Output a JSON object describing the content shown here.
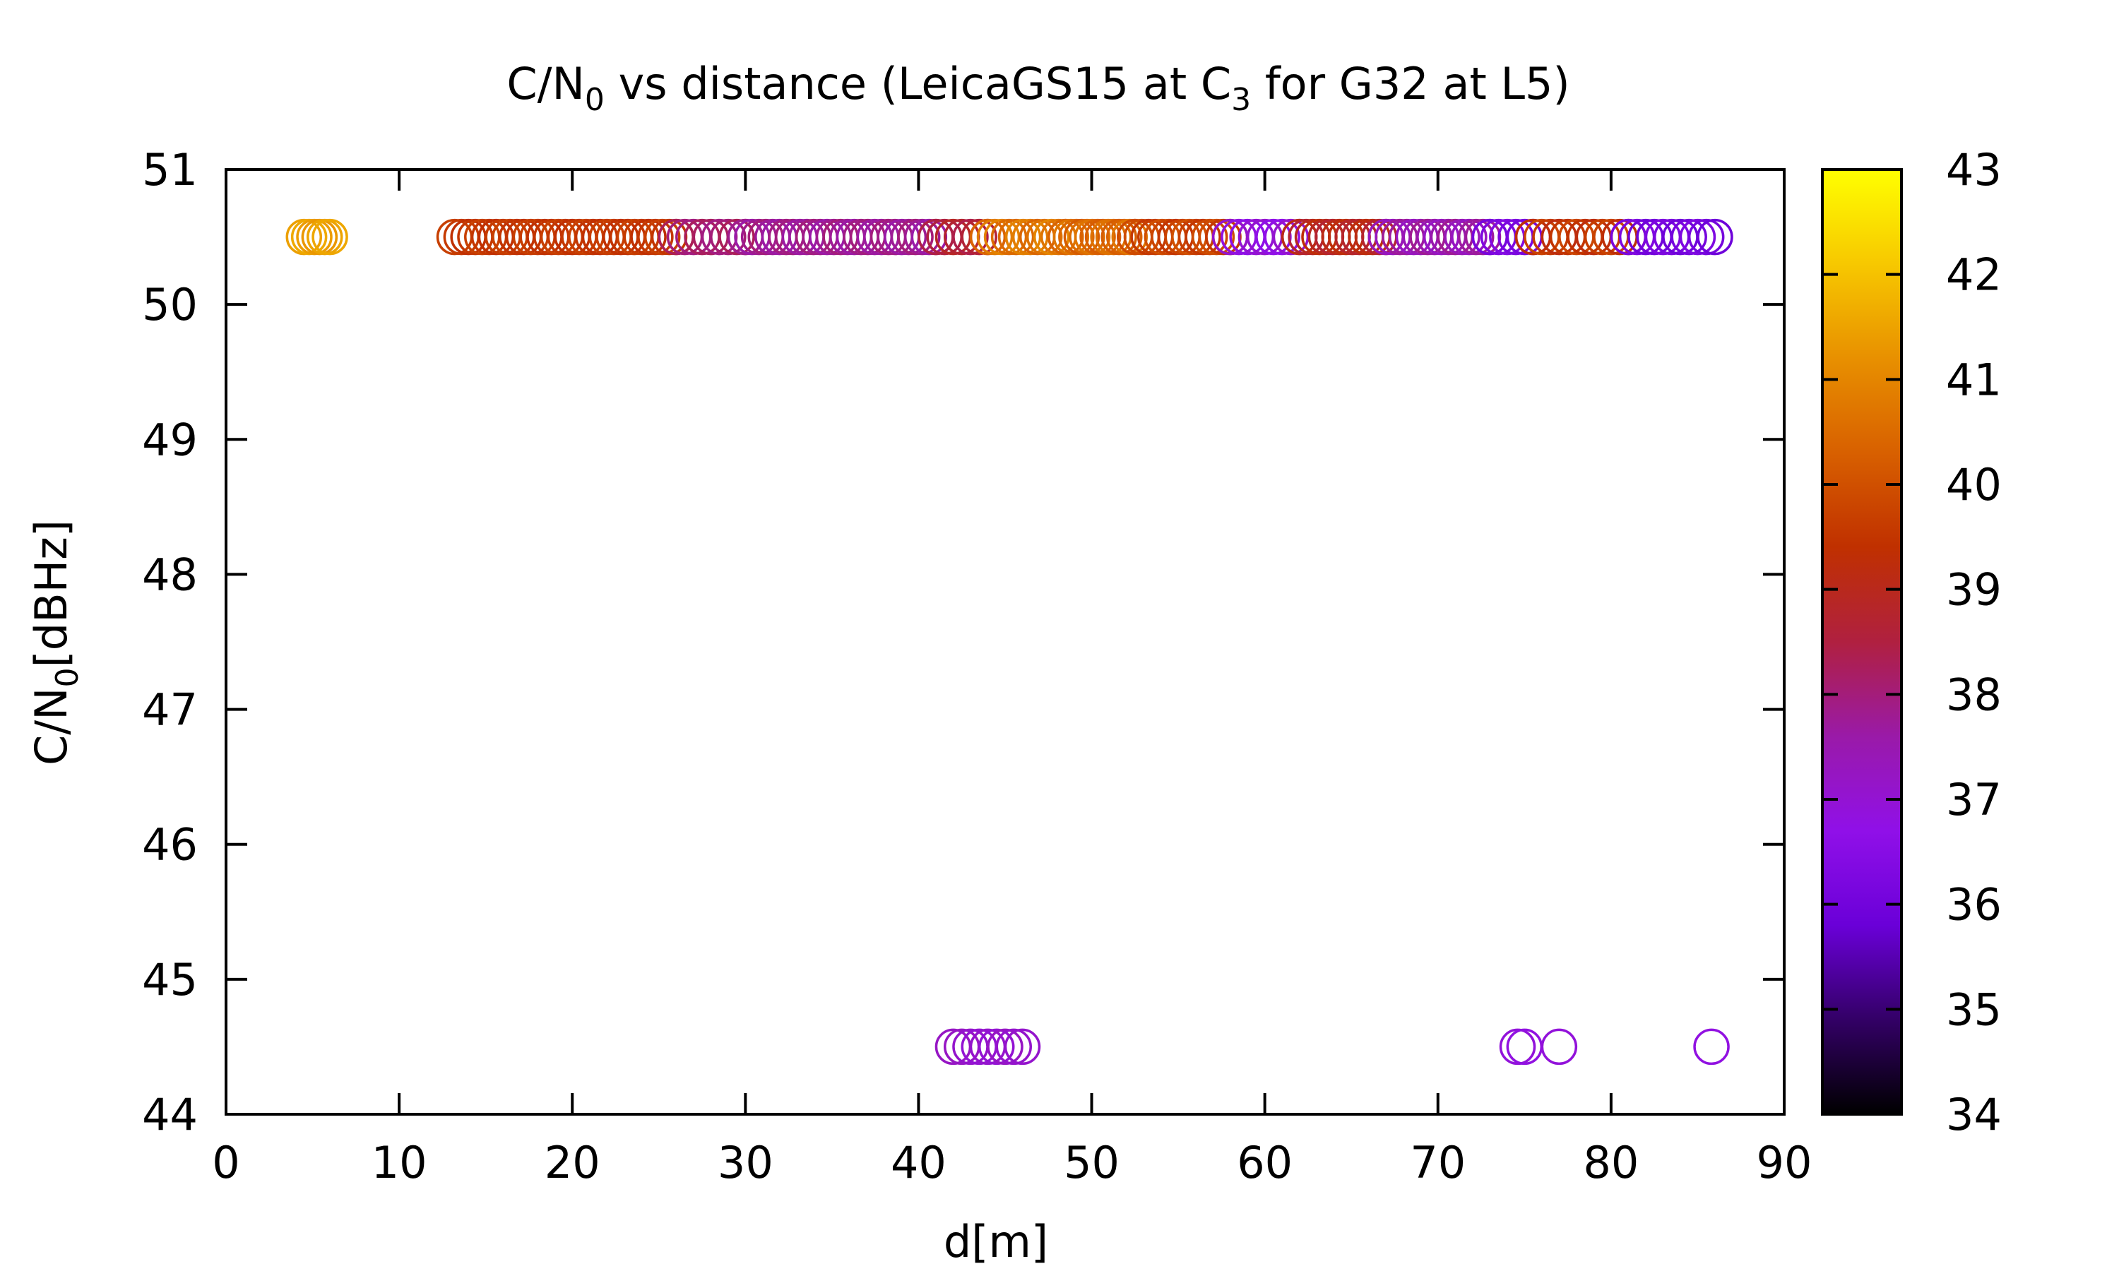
{
  "chart_data": {
    "type": "scatter",
    "title": {
      "prefix": "C/N",
      "sub1": "0",
      "middle": " vs distance (LeicaGS15 at C",
      "sub2": "3",
      "suffix": " for G32 at L5)"
    },
    "xlabel": "d[m]",
    "ylabel": {
      "prefix": "C/N",
      "sub": "0",
      "suffix": "[dBHz]"
    },
    "xlim": [
      0,
      90
    ],
    "ylim": [
      44,
      51
    ],
    "xticks": [
      0,
      10,
      20,
      30,
      40,
      50,
      60,
      70,
      80,
      90
    ],
    "yticks": [
      44,
      45,
      46,
      47,
      48,
      49,
      50,
      51
    ],
    "grid": false,
    "marker": "open-circle",
    "colorbar": {
      "range": [
        34,
        43
      ],
      "ticks": [
        34,
        35,
        36,
        37,
        38,
        39,
        40,
        41,
        42,
        43
      ],
      "palette": [
        "#000000",
        "#330066",
        "#6a00d8",
        "#9010e8",
        "#9a1aa8",
        "#b02040",
        "#c03000",
        "#d86000",
        "#e89000",
        "#f7c800",
        "#ffff00"
      ]
    },
    "series": [
      {
        "segments": [
          {
            "x_from": 4.5,
            "x_to": 6.0,
            "step": 0.3,
            "c_from": 41.3,
            "c_to": 41.6
          },
          {
            "x_from": 13.2,
            "x_to": 26.0,
            "step": 0.4,
            "c_from": 39.4,
            "c_to": 39.7
          },
          {
            "x_from": 26.0,
            "x_to": 30.0,
            "step": 0.5,
            "c_from": 37.9,
            "c_to": 38.3
          },
          {
            "x_from": 30.0,
            "x_to": 41.0,
            "step": 0.4,
            "c_from": 37.6,
            "c_to": 38.0
          },
          {
            "x_from": 41.0,
            "x_to": 44.0,
            "step": 0.5,
            "c_from": 38.4,
            "c_to": 38.9
          },
          {
            "x_from": 44.0,
            "x_to": 48.5,
            "step": 0.4,
            "c_from": 40.4,
            "c_to": 41.0
          },
          {
            "x_from": 48.5,
            "x_to": 52.5,
            "step": 0.3,
            "c_from": 40.2,
            "c_to": 40.7
          },
          {
            "x_from": 52.5,
            "x_to": 58.0,
            "step": 0.4,
            "c_from": 39.5,
            "c_to": 40.0
          },
          {
            "x_from": 58.0,
            "x_to": 62.0,
            "step": 0.5,
            "c_from": 36.6,
            "c_to": 37.1
          },
          {
            "x_from": 62.0,
            "x_to": 67.0,
            "step": 0.4,
            "c_from": 38.7,
            "c_to": 39.3
          },
          {
            "x_from": 67.0,
            "x_to": 73.0,
            "step": 0.4,
            "c_from": 37.2,
            "c_to": 37.8
          },
          {
            "x_from": 73.0,
            "x_to": 75.5,
            "step": 0.5,
            "c_from": 36.1,
            "c_to": 36.4
          },
          {
            "x_from": 75.5,
            "x_to": 81.0,
            "step": 0.5,
            "c_from": 39.2,
            "c_to": 39.8
          },
          {
            "x_from": 81.0,
            "x_to": 86.0,
            "step": 0.5,
            "c_from": 35.9,
            "c_to": 36.3
          }
        ],
        "y": 50.5
      },
      {
        "points": [
          {
            "x": 42.0,
            "c": 37.2
          },
          {
            "x": 42.5,
            "c": 37.2
          },
          {
            "x": 43.0,
            "c": 37.1
          },
          {
            "x": 43.5,
            "c": 37.0
          },
          {
            "x": 44.0,
            "c": 37.1
          },
          {
            "x": 44.5,
            "c": 37.0
          },
          {
            "x": 45.0,
            "c": 37.2
          },
          {
            "x": 45.5,
            "c": 37.1
          },
          {
            "x": 46.0,
            "c": 37.1
          },
          {
            "x": 74.6,
            "c": 36.9
          },
          {
            "x": 75.0,
            "c": 36.8
          },
          {
            "x": 77.0,
            "c": 36.9
          },
          {
            "x": 85.8,
            "c": 36.8
          }
        ],
        "y": 44.5
      }
    ]
  }
}
